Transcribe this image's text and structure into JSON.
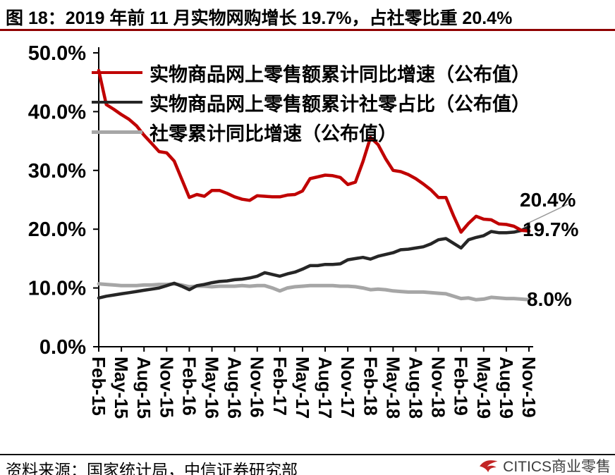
{
  "title": "图 18：2019 年前 11 月实物网购增长 19.7%，占社零比重 20.4%",
  "annotations": {
    "share_end": "20.4%",
    "online_end": "19.7%",
    "retail_end": "8.0%"
  },
  "footer": {
    "source": "资料来源：国家统计局，中信证券研究部",
    "brand": "CITICS商业零售"
  },
  "colors": {
    "title_rule": "#8F0000",
    "axis": "#000000",
    "leader": "#999999",
    "online_growth": "#C00000",
    "share": "#262626",
    "retail_growth": "#A6A6A6"
  },
  "chart_data": {
    "type": "line",
    "title": "图 18：2019 年前 11 月实物网购增长 19.7%，占社零比重 20.4%",
    "ylim": [
      0,
      50
    ],
    "grid": false,
    "legend_position": "top-left-inside",
    "tick_step": 3,
    "x_ticks": [
      "Feb-15",
      "May-15",
      "Aug-15",
      "Nov-15",
      "Feb-16",
      "May-16",
      "Aug-16",
      "Nov-16",
      "Feb-17",
      "May-17",
      "Aug-17",
      "Nov-17",
      "Feb-18",
      "May-18",
      "Aug-18",
      "Nov-18",
      "Feb-19",
      "May-19",
      "Aug-19",
      "Nov-19"
    ],
    "y_ticks": [
      {
        "value": 0,
        "label": "0.0%"
      },
      {
        "value": 10,
        "label": "10.0%"
      },
      {
        "value": 20,
        "label": "20.0%"
      },
      {
        "value": 30,
        "label": "30.0%"
      },
      {
        "value": 40,
        "label": "40.0%"
      },
      {
        "value": 50,
        "label": "50.0%"
      }
    ],
    "series": [
      {
        "name": "实物商品网上零售额累计同比增速（公布值）",
        "color": "#C00000",
        "end_label": "19.7%",
        "values": [
          47.0,
          41.2,
          40.4,
          39.5,
          38.7,
          37.6,
          36.0,
          34.6,
          33.2,
          33.0,
          31.6,
          28.5,
          25.4,
          25.9,
          25.6,
          26.6,
          26.6,
          26.1,
          25.5,
          25.1,
          24.9,
          25.7,
          25.6,
          25.5,
          25.5,
          25.8,
          25.9,
          26.5,
          28.6,
          28.9,
          29.2,
          29.1,
          28.8,
          27.6,
          28.0,
          31.5,
          35.6,
          34.4,
          32.0,
          30.0,
          29.8,
          29.3,
          28.6,
          27.7,
          26.7,
          25.4,
          25.4,
          22.3,
          19.5,
          21.0,
          22.2,
          21.7,
          21.6,
          20.9,
          20.8,
          20.5,
          19.8,
          19.7
        ]
      },
      {
        "name": "实物商品网上零售额累计社零占比（公布值）",
        "color": "#262626",
        "end_label": "20.4%",
        "values": [
          8.3,
          8.6,
          8.8,
          9.0,
          9.2,
          9.4,
          9.6,
          9.8,
          10.0,
          10.4,
          10.8,
          10.3,
          9.7,
          10.4,
          10.6,
          10.9,
          11.1,
          11.2,
          11.4,
          11.5,
          11.7,
          12.0,
          12.6,
          12.3,
          12.0,
          12.4,
          12.7,
          13.2,
          13.8,
          13.8,
          14.0,
          14.0,
          14.1,
          14.8,
          15.0,
          15.2,
          14.9,
          15.4,
          15.7,
          16.0,
          16.5,
          16.6,
          16.8,
          17.0,
          17.5,
          18.2,
          18.4,
          17.6,
          16.8,
          18.2,
          18.6,
          18.9,
          19.6,
          19.4,
          19.4,
          19.5,
          19.8,
          20.4
        ]
      },
      {
        "name": "社零累计同比增速（公布值）",
        "color": "#A6A6A6",
        "end_label": "8.0%",
        "values": [
          10.7,
          10.6,
          10.5,
          10.4,
          10.4,
          10.4,
          10.5,
          10.5,
          10.6,
          10.6,
          10.7,
          10.5,
          10.2,
          10.3,
          10.3,
          10.2,
          10.3,
          10.3,
          10.3,
          10.4,
          10.3,
          10.4,
          10.4,
          10.0,
          9.5,
          10.0,
          10.2,
          10.3,
          10.4,
          10.4,
          10.4,
          10.4,
          10.3,
          10.3,
          10.2,
          10.0,
          9.7,
          9.8,
          9.7,
          9.5,
          9.4,
          9.3,
          9.3,
          9.3,
          9.2,
          9.1,
          9.0,
          8.6,
          8.2,
          8.3,
          8.0,
          8.1,
          8.4,
          8.3,
          8.2,
          8.2,
          8.1,
          8.0
        ]
      }
    ]
  }
}
